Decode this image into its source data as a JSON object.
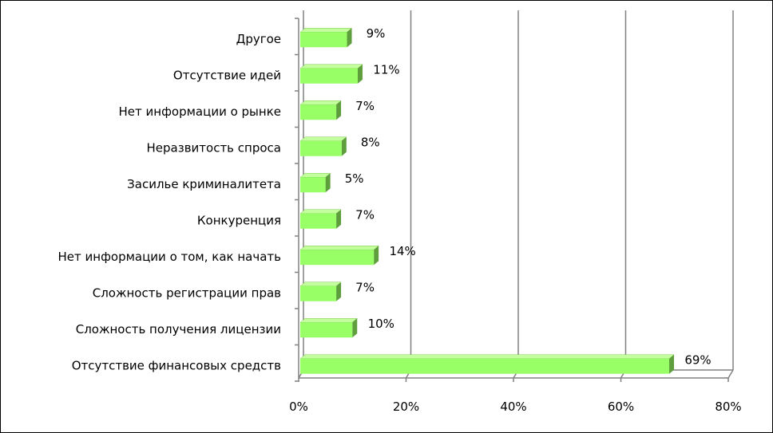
{
  "chart_data": {
    "type": "bar",
    "orientation": "horizontal",
    "categories": [
      "Другое",
      "Отсутствие идей",
      "Нет информации о рынке",
      "Неразвитость спроса",
      "Засилье криминалитета",
      "Конкуренция",
      "Нет информации о том, как начать",
      "Сложность регистрации прав",
      "Сложность получения лицензии",
      "Отсутствие финансовых средств"
    ],
    "values": [
      9,
      11,
      7,
      8,
      5,
      7,
      14,
      7,
      10,
      69
    ],
    "value_labels": [
      "9%",
      "11%",
      "7%",
      "8%",
      "5%",
      "7%",
      "14%",
      "7%",
      "10%",
      "69%"
    ],
    "xlim": [
      0,
      80
    ],
    "x_ticks": [
      0,
      20,
      40,
      60,
      80
    ],
    "x_tick_labels": [
      "0%",
      "20%",
      "40%",
      "60%",
      "80%"
    ],
    "title": "",
    "xlabel": "",
    "ylabel": "",
    "grid": "vertical",
    "legend": "none",
    "style": "3d",
    "colors": {
      "bar_front": "#99ff66",
      "bar_top": "#c4ff9e",
      "bar_side": "#5e9e3c",
      "grid": "#808080",
      "axis": "#808080",
      "wall": "#ffffff"
    }
  }
}
